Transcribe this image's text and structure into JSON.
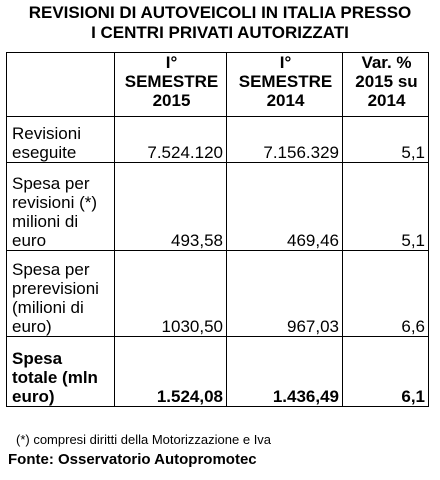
{
  "title": {
    "line1": "REVISIONI DI AUTOVEICOLI IN ITALIA PRESSO",
    "line2": "I CENTRI PRIVATI AUTORIZZATI"
  },
  "table": {
    "headers": [
      {
        "lines": [
          "",
          "",
          ""
        ]
      },
      {
        "lines": [
          "I°",
          "SEMESTRE",
          "2015"
        ]
      },
      {
        "lines": [
          "I°",
          "SEMESTRE",
          "2014"
        ]
      },
      {
        "lines": [
          "Var. %",
          "2015 su",
          "2014"
        ]
      }
    ],
    "rows": [
      {
        "label_lines": [
          "Revisioni",
          "eseguite"
        ],
        "values": [
          "7.524.120",
          "7.156.329",
          "5,1"
        ]
      },
      {
        "label_lines": [
          "Spesa per",
          "revisioni (*)",
          "milioni di",
          "euro"
        ],
        "values": [
          "493,58",
          "469,46",
          "5,1"
        ]
      },
      {
        "label_lines": [
          "Spesa per",
          "prerevisioni",
          "(milioni di",
          "euro)"
        ],
        "values": [
          "1030,50",
          "967,03",
          "6,6"
        ]
      },
      {
        "label_lines": [
          "Spesa",
          "totale (mln",
          "euro)"
        ],
        "values": [
          "1.524,08",
          "1.436,49",
          "6,1"
        ]
      }
    ]
  },
  "footnote": "(*) compresi diritti della Motorizzazione e Iva",
  "source": "Fonte: Osservatorio Autopromotec"
}
